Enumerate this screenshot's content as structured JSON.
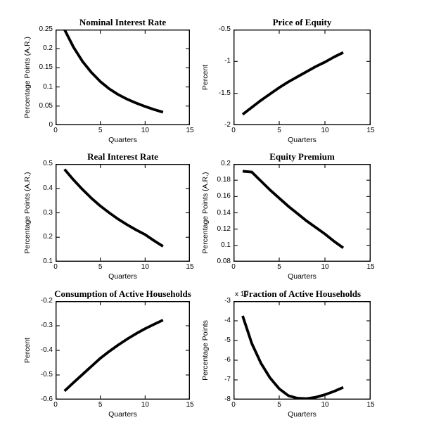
{
  "figure": {
    "background": "#ffffff",
    "line_color": "#000000",
    "text_color": "#000000"
  },
  "chart_data": [
    {
      "type": "line",
      "title": "Nominal Interest Rate",
      "xlabel": "Quarters",
      "ylabel": "Percentage Points (A.R.)",
      "xlim": [
        0,
        15
      ],
      "ylim": [
        0,
        0.25
      ],
      "xticks": [
        0,
        5,
        10,
        15
      ],
      "xtick_labels": [
        "0",
        "5",
        "10",
        "15"
      ],
      "yticks": [
        0,
        0.05,
        0.1,
        0.15,
        0.2,
        0.25
      ],
      "ytick_labels": [
        "0",
        "0.05",
        "0.1",
        "0.15",
        "0.2",
        "0.25"
      ],
      "grid": false,
      "x": [
        1,
        2,
        3,
        4,
        5,
        6,
        7,
        8,
        9,
        10,
        11,
        12
      ],
      "y": [
        0.25,
        0.204,
        0.167,
        0.138,
        0.114,
        0.095,
        0.08,
        0.068,
        0.058,
        0.049,
        0.041,
        0.034
      ]
    },
    {
      "type": "line",
      "title": "Price of Equity",
      "xlabel": "Quarters",
      "ylabel": "Percent",
      "xlim": [
        0,
        15
      ],
      "ylim": [
        -2,
        -0.5
      ],
      "xticks": [
        0,
        5,
        10,
        15
      ],
      "xtick_labels": [
        "0",
        "5",
        "10",
        "15"
      ],
      "yticks": [
        -2,
        -1.5,
        -1,
        -0.5
      ],
      "ytick_labels": [
        "-2",
        "-1.5",
        "-1",
        "-0.5"
      ],
      "grid": false,
      "x": [
        1,
        2,
        3,
        4,
        5,
        6,
        7,
        8,
        9,
        10,
        11,
        12
      ],
      "y": [
        -1.83,
        -1.72,
        -1.61,
        -1.51,
        -1.41,
        -1.32,
        -1.24,
        -1.16,
        -1.08,
        -1.01,
        -0.93,
        -0.86
      ]
    },
    {
      "type": "line",
      "title": "Real Interest Rate",
      "xlabel": "Quarters",
      "ylabel": "Percentage Points (A.R.)",
      "xlim": [
        0,
        15
      ],
      "ylim": [
        0.1,
        0.5
      ],
      "xticks": [
        0,
        5,
        10,
        15
      ],
      "xtick_labels": [
        "0",
        "5",
        "10",
        "15"
      ],
      "yticks": [
        0.1,
        0.2,
        0.3,
        0.4,
        0.5
      ],
      "ytick_labels": [
        "0.1",
        "0.2",
        "0.3",
        "0.4",
        "0.5"
      ],
      "grid": false,
      "x": [
        1,
        2,
        3,
        4,
        5,
        6,
        7,
        8,
        9,
        10,
        11,
        12
      ],
      "y": [
        0.478,
        0.435,
        0.396,
        0.36,
        0.328,
        0.3,
        0.274,
        0.251,
        0.23,
        0.211,
        0.186,
        0.163
      ]
    },
    {
      "type": "line",
      "title": "Equity Premium",
      "xlabel": "Quarters",
      "ylabel": "Percentage Points (A.R.)",
      "xlim": [
        0,
        15
      ],
      "ylim": [
        0.08,
        0.2
      ],
      "xticks": [
        0,
        5,
        10,
        15
      ],
      "xtick_labels": [
        "0",
        "5",
        "10",
        "15"
      ],
      "yticks": [
        0.08,
        0.1,
        0.12,
        0.14,
        0.16,
        0.18,
        0.2
      ],
      "ytick_labels": [
        "0.08",
        "0.1",
        "0.12",
        "0.14",
        "0.16",
        "0.18",
        "0.2"
      ],
      "grid": false,
      "x": [
        1,
        2,
        3,
        4,
        5,
        6,
        7,
        8,
        9,
        10,
        11,
        12
      ],
      "y": [
        0.191,
        0.19,
        0.179,
        0.168,
        0.158,
        0.148,
        0.139,
        0.13,
        0.122,
        0.114,
        0.105,
        0.097
      ]
    },
    {
      "type": "line",
      "title": "Consumption of Active Households",
      "xlabel": "Quarters",
      "ylabel": "Percent",
      "xlim": [
        0,
        15
      ],
      "ylim": [
        -0.6,
        -0.2
      ],
      "xticks": [
        0,
        5,
        10,
        15
      ],
      "xtick_labels": [
        "0",
        "5",
        "10",
        "15"
      ],
      "yticks": [
        -0.6,
        -0.5,
        -0.4,
        -0.3,
        -0.2
      ],
      "ytick_labels": [
        "-0.6",
        "-0.5",
        "-0.4",
        "-0.3",
        "-0.2"
      ],
      "grid": false,
      "x": [
        1,
        2,
        3,
        4,
        5,
        6,
        7,
        8,
        9,
        10,
        11,
        12
      ],
      "y": [
        -0.565,
        -0.531,
        -0.498,
        -0.465,
        -0.432,
        -0.404,
        -0.378,
        -0.354,
        -0.332,
        -0.312,
        -0.294,
        -0.277
      ]
    },
    {
      "type": "line",
      "title": "Fraction of Active Households",
      "xlabel": "Quarters",
      "ylabel": "Percentage Points",
      "multiplier": "x 10",
      "xlim": [
        0,
        15
      ],
      "ylim": [
        -8,
        -3
      ],
      "xticks": [
        0,
        5,
        10,
        15
      ],
      "xtick_labels": [
        "0",
        "5",
        "10",
        "15"
      ],
      "yticks": [
        -8,
        -7,
        -6,
        -5,
        -4,
        -3
      ],
      "ytick_labels": [
        "-8",
        "-7",
        "-6",
        "-5",
        "-4",
        "-3"
      ],
      "grid": false,
      "x": [
        1,
        2,
        3,
        4,
        5,
        6,
        7,
        8,
        9,
        10,
        11,
        12
      ],
      "y": [
        -3.75,
        -5.15,
        -6.15,
        -6.9,
        -7.45,
        -7.8,
        -7.93,
        -7.95,
        -7.88,
        -7.75,
        -7.58,
        -7.38
      ]
    }
  ]
}
